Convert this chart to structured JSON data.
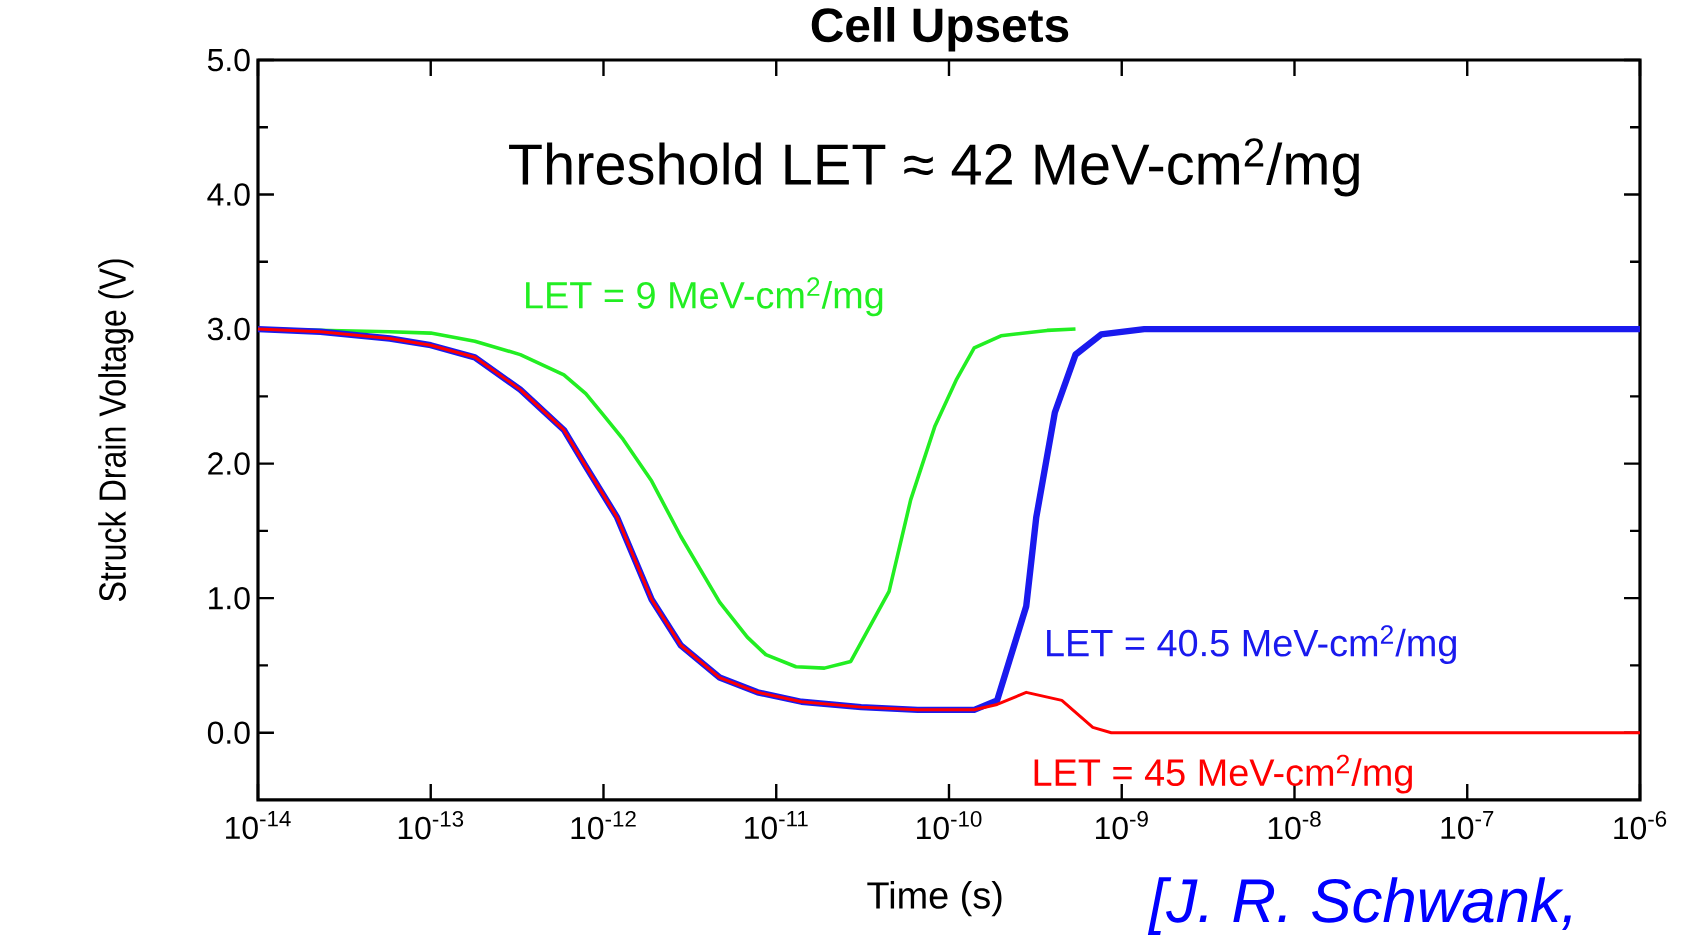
{
  "chart_data": {
    "type": "line",
    "title": "Cell Upsets",
    "xlabel": "Time (s)",
    "ylabel": "Struck Drain Voltage (V)",
    "log": "x",
    "xlim": [
      1e-14,
      1e-06
    ],
    "ylim": [
      -0.5,
      5.0
    ],
    "xticks": [
      {
        "value": 1e-14,
        "label": "10$^{-14}$"
      },
      {
        "value": 1e-13,
        "label": "10$^{-13}$"
      },
      {
        "value": 1e-12,
        "label": "10$^{-12}$"
      },
      {
        "value": 1e-11,
        "label": "10$^{-11}$"
      },
      {
        "value": 1e-10,
        "label": "10$^{-10}$"
      },
      {
        "value": 1e-09,
        "label": "10$^{-9}$"
      },
      {
        "value": 1e-08,
        "label": "10$^{-8}$"
      },
      {
        "value": 1e-07,
        "label": "10$^{-7}$"
      },
      {
        "value": 1e-06,
        "label": "10$^{-6}$"
      }
    ],
    "yticks": [
      {
        "value": 0,
        "label": "0.0"
      },
      {
        "value": 1,
        "label": "1.0"
      },
      {
        "value": 2,
        "label": "2.0"
      },
      {
        "value": 3,
        "label": "3.0"
      },
      {
        "value": 4,
        "label": "4.0"
      },
      {
        "value": 5,
        "label": "5.0"
      }
    ],
    "annotations": [
      "Threshold LET ≈ 42 MeV-cm$^{2}$/mg",
      "[J. R. Schwank,"
    ],
    "series": [
      {
        "name": "LET = 9 MeV-cm$^{2}$/mg",
        "color": "#22ee22",
        "x": [
          1e-14,
          5.8e-14,
          1e-13,
          1.8e-13,
          3.3e-13,
          5.9e-13,
          7.9e-13,
          1e-12,
          1.3e-12,
          1.9e-12,
          2.8e-12,
          4.7e-12,
          6.8e-12,
          8.7e-12,
          1.3e-11,
          1.9e-11,
          2.7e-11,
          4.5e-11,
          6e-11,
          8.3e-11,
          1.1e-10,
          1.4e-10,
          2e-10,
          3.7e-10,
          5.4e-10
        ],
        "values": [
          3.0,
          2.98,
          2.97,
          2.91,
          2.81,
          2.66,
          2.52,
          2.36,
          2.18,
          1.87,
          1.46,
          0.97,
          0.71,
          0.58,
          0.49,
          0.48,
          0.53,
          1.05,
          1.73,
          2.28,
          2.62,
          2.86,
          2.95,
          2.99,
          3.0
        ]
      },
      {
        "name": "LET = 40.5 MeV-cm$^{2}$/mg",
        "color": "#1a1aee",
        "x": [
          1e-14,
          2.3e-14,
          5.8e-14,
          1e-13,
          1.8e-13,
          3.3e-13,
          5.9e-13,
          7.9e-13,
          1.2e-12,
          1.9e-12,
          2.8e-12,
          4.7e-12,
          7.8e-12,
          1.4e-11,
          3.1e-11,
          6.6e-11,
          1.1e-10,
          1.4e-10,
          1.9e-10,
          2.8e-10,
          3.2e-10,
          4.1e-10,
          5.4e-10,
          7.6e-10,
          1.35e-09,
          1e-06
        ],
        "values": [
          3.0,
          2.98,
          2.93,
          2.88,
          2.79,
          2.55,
          2.25,
          1.98,
          1.6,
          0.99,
          0.65,
          0.41,
          0.3,
          0.23,
          0.19,
          0.17,
          0.17,
          0.17,
          0.24,
          0.94,
          1.6,
          2.38,
          2.81,
          2.96,
          3.0,
          3.0
        ]
      },
      {
        "name": "LET = 45 MeV-cm$^{2}$/mg",
        "color": "#ff0000",
        "x": [
          1e-14,
          2.3e-14,
          5.8e-14,
          1e-13,
          1.8e-13,
          3.3e-13,
          5.9e-13,
          7.9e-13,
          1.2e-12,
          1.9e-12,
          2.8e-12,
          4.7e-12,
          7.8e-12,
          1.4e-11,
          3.1e-11,
          6.6e-11,
          1.1e-10,
          1.4e-10,
          1.9e-10,
          2.8e-10,
          4.5e-10,
          6.8e-10,
          8.7e-10,
          1e-06
        ],
        "values": [
          3.0,
          2.98,
          2.93,
          2.88,
          2.79,
          2.55,
          2.25,
          1.98,
          1.6,
          0.99,
          0.65,
          0.41,
          0.3,
          0.23,
          0.19,
          0.17,
          0.17,
          0.17,
          0.21,
          0.3,
          0.24,
          0.04,
          0.0,
          0.0
        ]
      }
    ]
  }
}
